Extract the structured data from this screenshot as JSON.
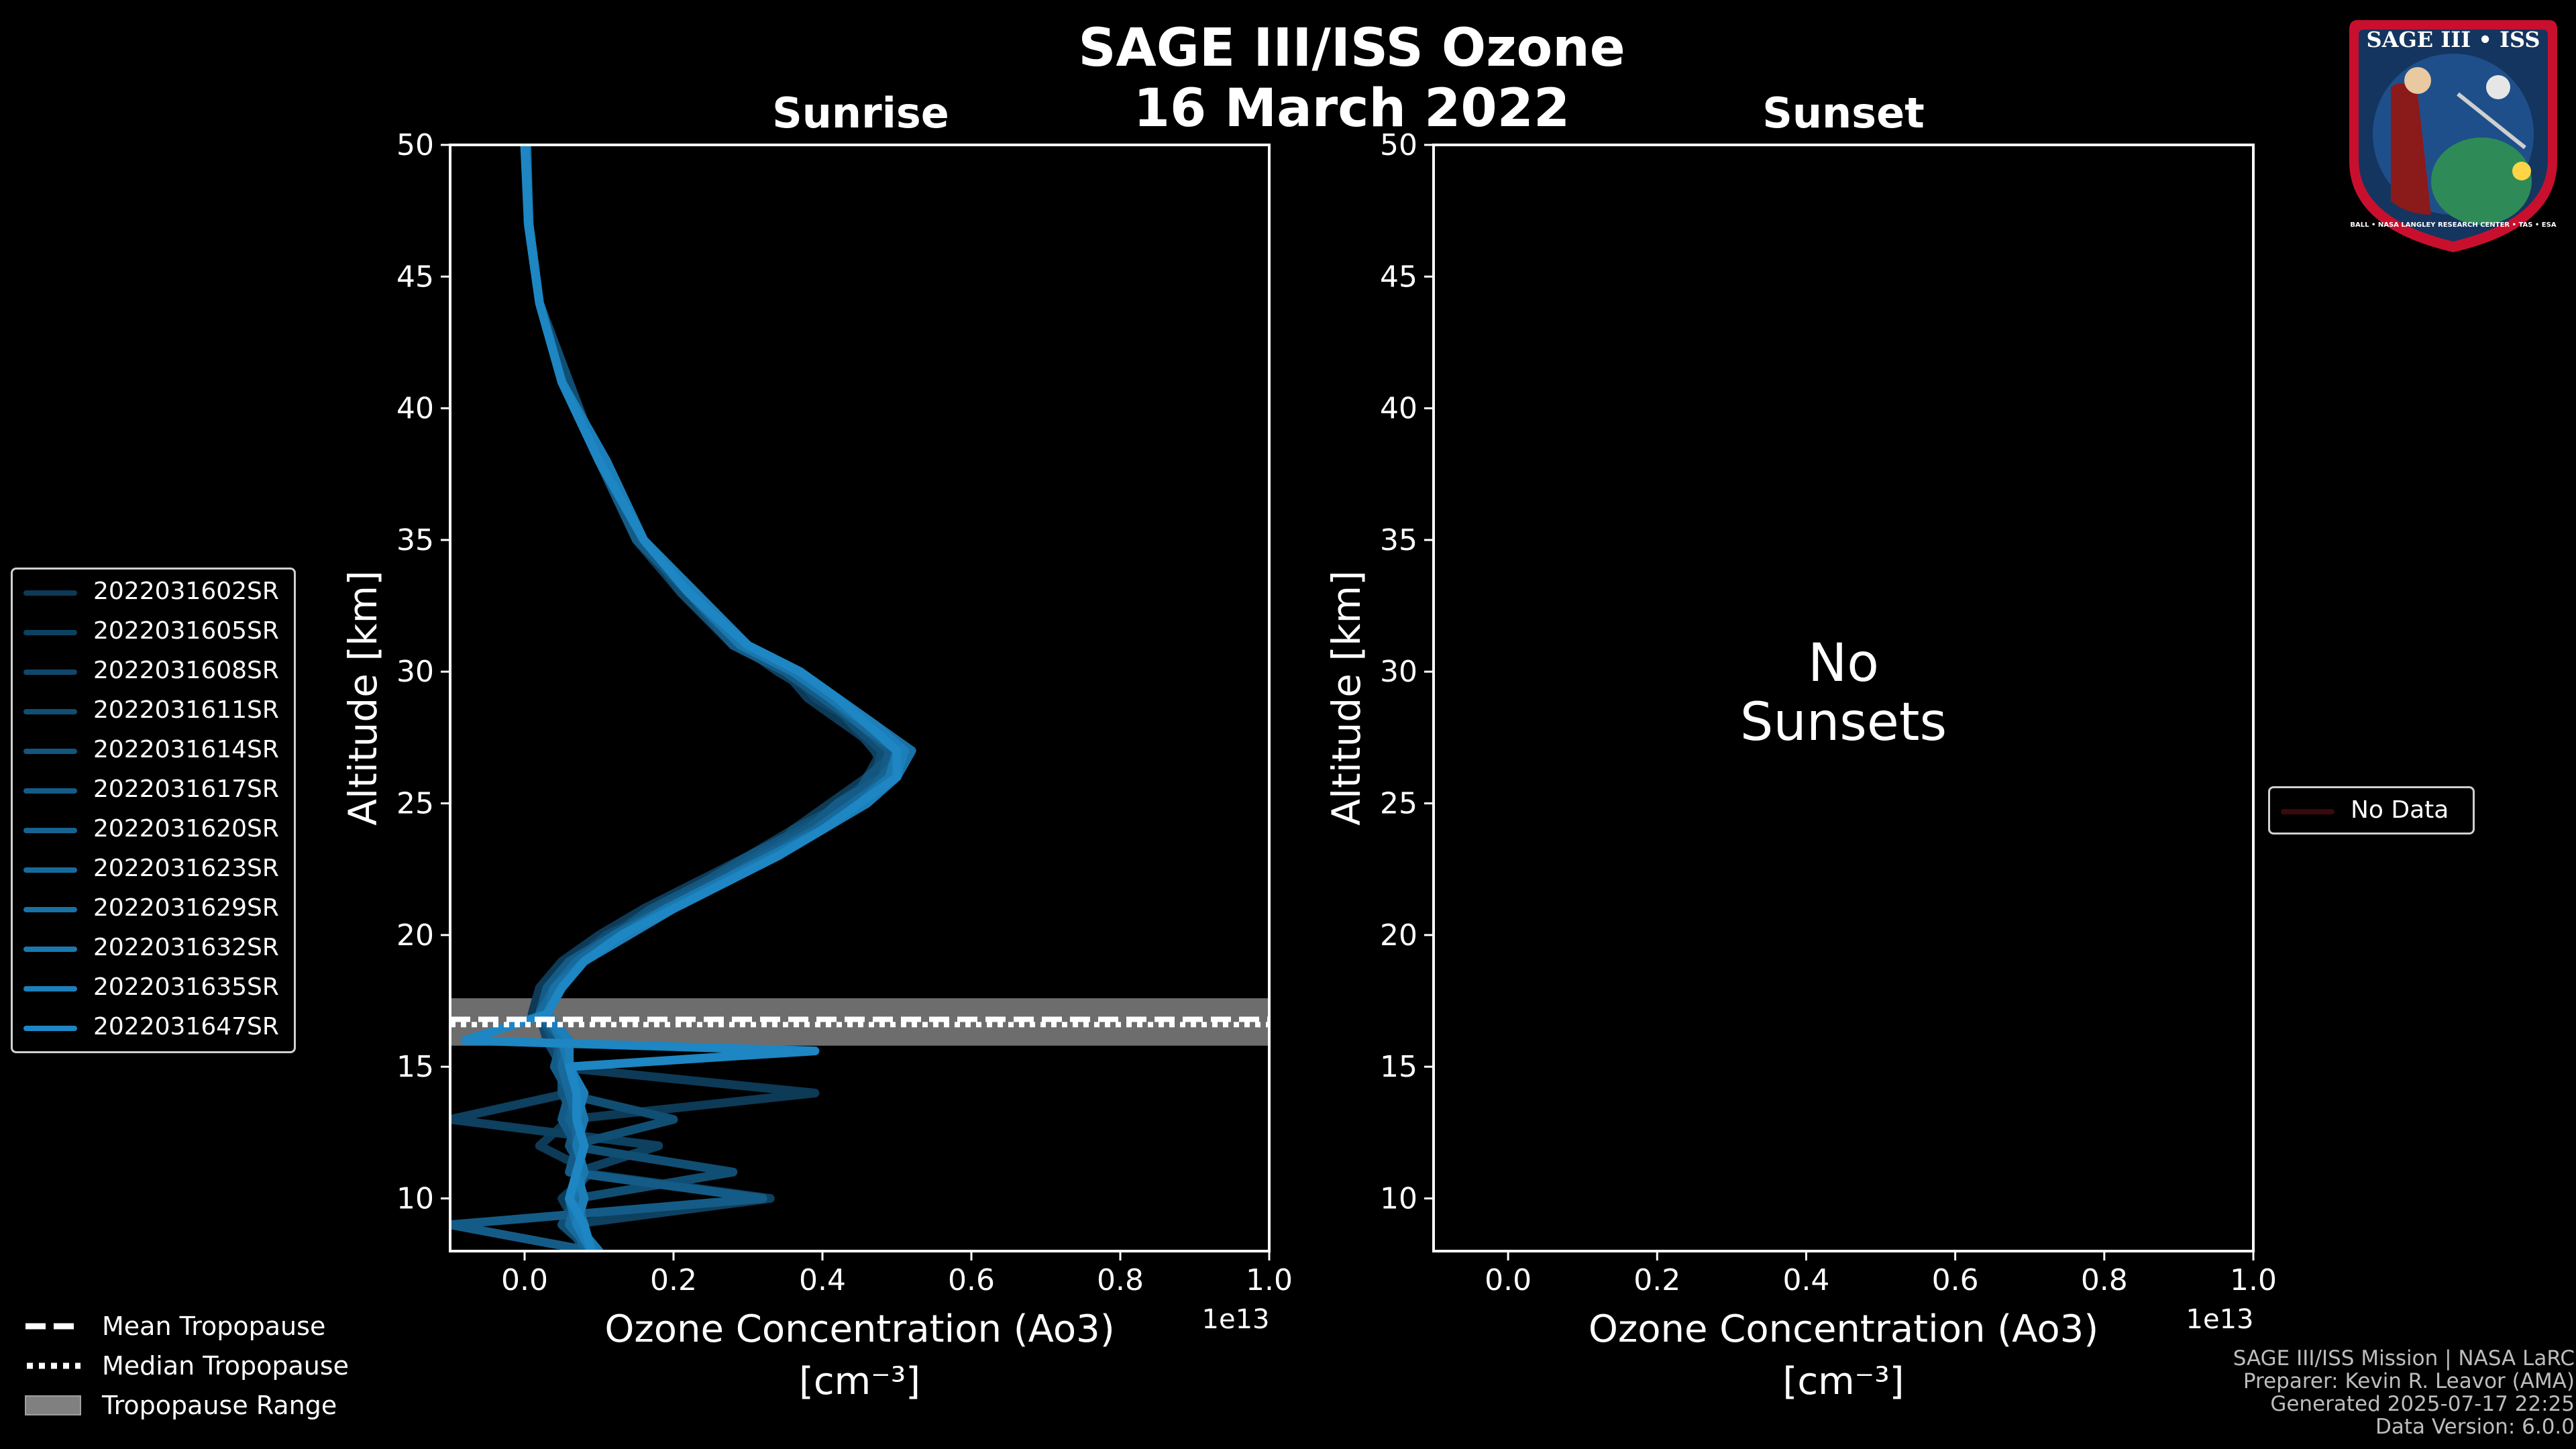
{
  "figure": {
    "title_line1": "SAGE III/ISS Ozone",
    "title_line2": "16 March 2022"
  },
  "chart_data": [
    {
      "type": "line",
      "panel": "left",
      "title": "Sunrise",
      "xlabel_line1": "Ozone Concentration (Ao3)",
      "xlabel_line2": "[cm⁻³]",
      "x_offset_label": "1e13",
      "ylabel": "Altitude [km]",
      "xlim": [
        -0.1,
        1.0
      ],
      "ylim": [
        8,
        50
      ],
      "xticks": [
        0.0,
        0.2,
        0.4,
        0.6,
        0.8,
        1.0
      ],
      "xtick_labels": [
        "0.0",
        "0.2",
        "0.4",
        "0.6",
        "0.8",
        "1.0"
      ],
      "yticks": [
        10,
        15,
        20,
        25,
        30,
        35,
        40,
        45,
        50
      ],
      "ytick_labels": [
        "10",
        "15",
        "20",
        "25",
        "30",
        "35",
        "40",
        "45",
        "50"
      ],
      "tropopause": {
        "mean": 16.8,
        "median": 16.6,
        "range": [
          15.8,
          17.6
        ]
      },
      "series": [
        {
          "name": "2022031602SR",
          "color": "#0d3a56",
          "altitude": [
            50,
            47,
            44,
            41,
            38,
            35,
            33,
            31,
            30,
            29,
            28,
            27,
            26,
            25,
            24,
            23,
            22,
            21,
            20,
            19,
            18,
            17,
            16,
            15,
            14,
            13,
            12,
            11,
            10,
            9,
            8
          ],
          "x": [
            0.002,
            0.005,
            0.02,
            0.05,
            0.1,
            0.16,
            0.22,
            0.28,
            0.35,
            0.38,
            0.43,
            0.48,
            0.46,
            0.41,
            0.36,
            0.3,
            0.23,
            0.16,
            0.1,
            0.05,
            0.02,
            0.01,
            0.05,
            0.04,
            0.39,
            0.06,
            0.02,
            0.09,
            0.05,
            0.07,
            0.08
          ]
        },
        {
          "name": "2022031605SR",
          "color": "#0e405f",
          "altitude": [
            50,
            47,
            44,
            41,
            38,
            35,
            33,
            31,
            30,
            29,
            28,
            27,
            26,
            25,
            24,
            23,
            22,
            21,
            20,
            19,
            18,
            17,
            16,
            15,
            14,
            13,
            12,
            11,
            10,
            9,
            8
          ],
          "x": [
            0.002,
            0.006,
            0.02,
            0.05,
            0.1,
            0.15,
            0.21,
            0.29,
            0.34,
            0.4,
            0.44,
            0.47,
            0.49,
            0.43,
            0.37,
            0.31,
            0.24,
            0.17,
            0.11,
            0.06,
            0.03,
            0.02,
            0.04,
            0.05,
            0.06,
            -0.1,
            0.18,
            0.07,
            0.33,
            0.06,
            0.09
          ]
        },
        {
          "name": "2022031608SR",
          "color": "#104769",
          "altitude": [
            50,
            47,
            44,
            41,
            38,
            35,
            33,
            31,
            30,
            29,
            28,
            27,
            26,
            25,
            24,
            23,
            22,
            21,
            20,
            19,
            18,
            17,
            16,
            15,
            14,
            13,
            12,
            11,
            10,
            9,
            8
          ],
          "x": [
            0.001,
            0.005,
            0.02,
            0.05,
            0.11,
            0.16,
            0.22,
            0.29,
            0.36,
            0.39,
            0.45,
            0.49,
            0.47,
            0.42,
            0.38,
            0.32,
            0.25,
            0.18,
            0.12,
            0.06,
            0.03,
            0.02,
            0.03,
            0.05,
            0.06,
            0.06,
            0.07,
            0.07,
            0.06,
            0.06,
            0.08
          ]
        },
        {
          "name": "2022031611SR",
          "color": "#114e73",
          "altitude": [
            50,
            47,
            44,
            41,
            38,
            35,
            33,
            31,
            30,
            29,
            28,
            27,
            26,
            25,
            24,
            23,
            22,
            21,
            20,
            19,
            18,
            17,
            16,
            15,
            14,
            13,
            12,
            11,
            10,
            9,
            8
          ],
          "x": [
            0.002,
            0.006,
            0.02,
            0.06,
            0.1,
            0.16,
            0.21,
            0.28,
            0.35,
            0.41,
            0.44,
            0.48,
            0.47,
            0.43,
            0.36,
            0.33,
            0.26,
            0.19,
            0.11,
            0.07,
            0.04,
            0.03,
            0.04,
            0.05,
            0.05,
            0.2,
            0.06,
            0.28,
            0.07,
            0.05,
            0.09
          ]
        },
        {
          "name": "2022031614SR",
          "color": "#13557d",
          "altitude": [
            50,
            47,
            44,
            41,
            38,
            35,
            33,
            31,
            30,
            29,
            28,
            27,
            26,
            25,
            24,
            23,
            22,
            21,
            20,
            19,
            18,
            17,
            16,
            15,
            14,
            13,
            12,
            11,
            10,
            9,
            8
          ],
          "x": [
            0.002,
            0.005,
            0.02,
            0.05,
            0.1,
            0.16,
            0.22,
            0.29,
            0.36,
            0.4,
            0.46,
            0.5,
            0.46,
            0.44,
            0.37,
            0.3,
            0.24,
            0.17,
            0.12,
            0.07,
            0.04,
            0.02,
            0.04,
            0.06,
            0.05,
            0.07,
            0.06,
            0.08,
            0.06,
            0.07,
            0.08
          ]
        },
        {
          "name": "2022031617SR",
          "color": "#145c87",
          "altitude": [
            50,
            47,
            44,
            41,
            38,
            35,
            33,
            31,
            30,
            29,
            28,
            27,
            26,
            25,
            24,
            23,
            22,
            21,
            20,
            19,
            18,
            17,
            16,
            15,
            14,
            13,
            12,
            11,
            10,
            9,
            8
          ],
          "x": [
            0.003,
            0.006,
            0.02,
            0.05,
            0.1,
            0.15,
            0.22,
            0.28,
            0.35,
            0.4,
            0.45,
            0.49,
            0.48,
            0.42,
            0.38,
            0.31,
            0.25,
            0.18,
            0.12,
            0.06,
            0.03,
            0.02,
            0.05,
            0.04,
            0.06,
            0.05,
            0.07,
            0.06,
            0.32,
            -0.1,
            0.09
          ]
        },
        {
          "name": "2022031620SR",
          "color": "#166391",
          "altitude": [
            50,
            47,
            44,
            41,
            38,
            35,
            33,
            31,
            30,
            29,
            28,
            27,
            26,
            25,
            24,
            23,
            22,
            21,
            20,
            19,
            18,
            17,
            16,
            15,
            14,
            13,
            12,
            11,
            10,
            9,
            8
          ],
          "x": [
            0.002,
            0.005,
            0.02,
            0.05,
            0.11,
            0.16,
            0.22,
            0.3,
            0.37,
            0.42,
            0.46,
            0.51,
            0.48,
            0.45,
            0.39,
            0.32,
            0.26,
            0.19,
            0.13,
            0.07,
            0.04,
            0.02,
            0.05,
            0.05,
            0.07,
            0.06,
            0.08,
            0.07,
            0.06,
            0.07,
            0.08
          ]
        },
        {
          "name": "2022031623SR",
          "color": "#176a9b",
          "altitude": [
            50,
            47,
            44,
            41,
            38,
            35,
            33,
            31,
            30,
            29,
            28,
            27,
            26,
            25,
            24,
            23,
            22,
            21,
            20,
            19,
            18,
            17,
            16,
            15,
            14,
            13,
            12,
            11,
            10,
            9,
            8
          ],
          "x": [
            0.002,
            0.006,
            0.02,
            0.05,
            0.1,
            0.16,
            0.22,
            0.29,
            0.36,
            0.41,
            0.45,
            0.5,
            0.49,
            0.44,
            0.39,
            0.33,
            0.26,
            0.19,
            0.12,
            0.07,
            0.04,
            0.02,
            0.06,
            0.05,
            0.06,
            0.07,
            0.07,
            0.08,
            0.07,
            0.06,
            0.09
          ]
        },
        {
          "name": "2022031629SR",
          "color": "#1971a5",
          "altitude": [
            50,
            47,
            44,
            41,
            38,
            35,
            33,
            31,
            30,
            29,
            28,
            27,
            26,
            25,
            24,
            23,
            22,
            21,
            20,
            19,
            18,
            17,
            16,
            15,
            14,
            13,
            12,
            11,
            10,
            9,
            8
          ],
          "x": [
            0.002,
            0.005,
            0.02,
            0.05,
            0.1,
            0.16,
            0.23,
            0.3,
            0.37,
            0.42,
            0.47,
            0.52,
            0.5,
            0.46,
            0.4,
            0.34,
            0.27,
            0.2,
            0.13,
            0.08,
            0.04,
            0.03,
            0.06,
            0.06,
            0.07,
            0.07,
            0.08,
            0.07,
            0.07,
            0.08,
            0.09
          ]
        },
        {
          "name": "2022031632SR",
          "color": "#1a78af",
          "altitude": [
            50,
            47,
            44,
            41,
            38,
            35,
            33,
            31,
            30,
            29,
            28,
            27,
            26,
            25,
            24,
            23,
            22,
            21,
            20,
            19,
            18,
            17,
            16,
            15,
            14,
            13,
            12,
            11,
            10,
            9,
            8
          ],
          "x": [
            0.002,
            0.005,
            0.02,
            0.05,
            0.1,
            0.16,
            0.22,
            0.29,
            0.36,
            0.41,
            0.46,
            0.5,
            0.49,
            0.45,
            0.4,
            0.33,
            0.26,
            0.19,
            0.13,
            0.08,
            0.05,
            0.03,
            0.05,
            0.06,
            0.07,
            0.08,
            0.07,
            0.08,
            0.06,
            0.07,
            0.1
          ]
        },
        {
          "name": "2022031635SR",
          "color": "#1c7fb9",
          "altitude": [
            50,
            47,
            44,
            41,
            38,
            35,
            33,
            31,
            30,
            29,
            28,
            27,
            26,
            25,
            24,
            23,
            22,
            21,
            20,
            19,
            18,
            17,
            16,
            15,
            14,
            13,
            12,
            11,
            10,
            9,
            8
          ],
          "x": [
            0.002,
            0.006,
            0.02,
            0.05,
            0.11,
            0.16,
            0.23,
            0.3,
            0.37,
            0.42,
            0.47,
            0.51,
            0.5,
            0.46,
            0.4,
            0.34,
            0.27,
            0.2,
            0.14,
            0.08,
            0.05,
            0.03,
            0.06,
            0.06,
            0.08,
            0.07,
            0.08,
            0.07,
            0.08,
            0.07,
            0.09
          ]
        },
        {
          "name": "2022031647SR",
          "color": "#1d86c3",
          "altitude": [
            50,
            47,
            44,
            41,
            38,
            35,
            33,
            31,
            30,
            29,
            28,
            27,
            26,
            25,
            24,
            23,
            22,
            21,
            20,
            19,
            18,
            17,
            16,
            15.6,
            15,
            14,
            13,
            12,
            11,
            10,
            9,
            8
          ],
          "x": [
            0.0,
            0.005,
            0.02,
            0.05,
            0.1,
            0.16,
            0.22,
            0.3,
            0.37,
            0.42,
            0.46,
            0.5,
            0.5,
            0.45,
            0.4,
            0.34,
            0.27,
            0.2,
            0.13,
            0.08,
            0.05,
            0.03,
            -0.08,
            0.39,
            0.06,
            0.07,
            0.07,
            0.08,
            0.07,
            0.06,
            0.08,
            0.09
          ]
        }
      ]
    },
    {
      "type": "line",
      "panel": "right",
      "title": "Sunset",
      "xlabel_line1": "Ozone Concentration (Ao3)",
      "xlabel_line2": "[cm⁻³]",
      "x_offset_label": "1e13",
      "ylabel": "Altitude [km]",
      "xlim": [
        -0.1,
        1.0
      ],
      "ylim": [
        8,
        50
      ],
      "xticks": [
        0.0,
        0.2,
        0.4,
        0.6,
        0.8,
        1.0
      ],
      "xtick_labels": [
        "0.0",
        "0.2",
        "0.4",
        "0.6",
        "0.8",
        "1.0"
      ],
      "yticks": [
        10,
        15,
        20,
        25,
        30,
        35,
        40,
        45,
        50
      ],
      "ytick_labels": [
        "10",
        "15",
        "20",
        "25",
        "30",
        "35",
        "40",
        "45",
        "50"
      ],
      "annotation_line1": "No",
      "annotation_line2": "Sunsets",
      "series": [],
      "legend": [
        {
          "name": "No Data",
          "color": "#3a0a0a"
        }
      ]
    }
  ],
  "bottom_legend": [
    {
      "label": "Mean Tropopause",
      "style": "dashed"
    },
    {
      "label": "Median Tropopause",
      "style": "dotted"
    },
    {
      "label": "Tropopause Range",
      "style": "patch",
      "color": "#808080"
    }
  ],
  "footer": {
    "line1": "SAGE III/ISS Mission | NASA LaRC",
    "line2": "Preparer: Kevin R. Leavor (AMA)",
    "line3": "Generated 2025-07-17 22:25",
    "line4": "Data Version: 6.0.0"
  },
  "badge": {
    "title": "SAGE III • ISS",
    "ring_text": "BALL • NASA LANGLEY RESEARCH CENTER • TAS • ESA"
  }
}
